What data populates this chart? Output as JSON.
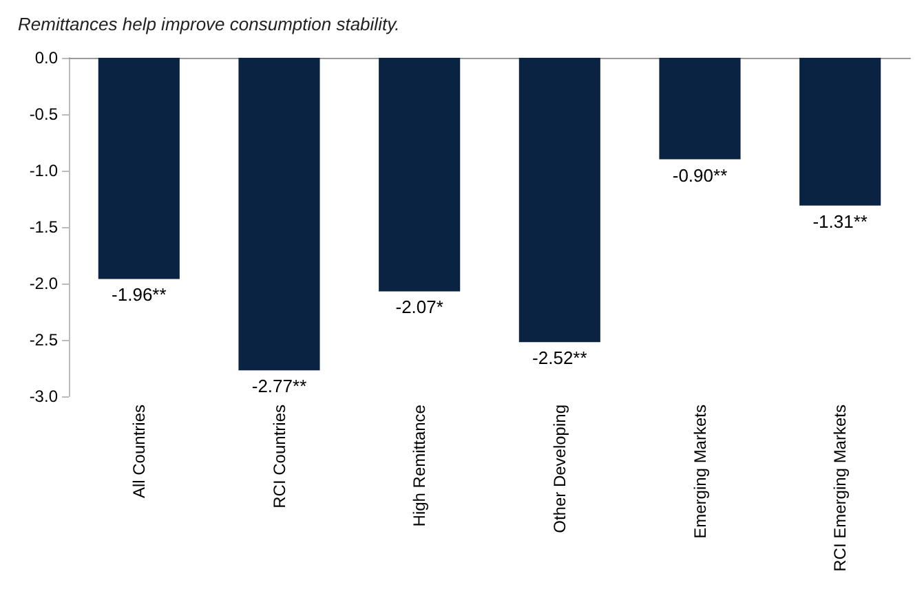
{
  "chart_data": {
    "type": "bar",
    "title": "Remittances help improve consumption stability.",
    "categories": [
      "All Countries",
      "RCI Countries",
      "High Remittance",
      "Other Developing",
      "Emerging Markets",
      "RCI Emerging Markets"
    ],
    "values": [
      -1.96,
      -2.77,
      -2.07,
      -2.52,
      -0.9,
      -1.31
    ],
    "value_labels": [
      "-1.96**",
      "-2.77**",
      "-2.07*",
      "-2.52**",
      "-0.90**",
      "-1.31**"
    ],
    "color": "#0b2343",
    "ylim": [
      -3,
      0
    ],
    "yticks": [
      {
        "value": 0,
        "label": "0.0"
      },
      {
        "value": -0.5,
        "label": "-0.5"
      },
      {
        "value": -1,
        "label": "-1.0"
      },
      {
        "value": -1.5,
        "label": "-1.5"
      },
      {
        "value": -2,
        "label": "-2.0"
      },
      {
        "value": -2.5,
        "label": "-2.5"
      },
      {
        "value": -3,
        "label": "-3.0"
      }
    ],
    "grid": false
  }
}
